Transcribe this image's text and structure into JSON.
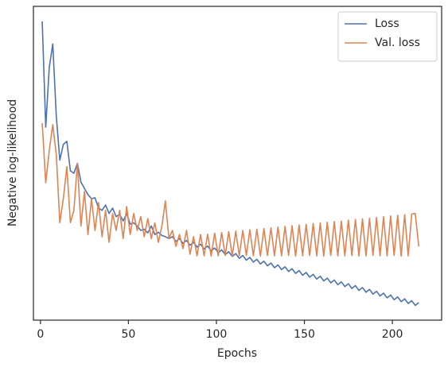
{
  "chart_data": {
    "type": "line",
    "xlabel": "Epochs",
    "ylabel": "Negative log-likelihood",
    "x": [
      1,
      3,
      5,
      7,
      9,
      11,
      13,
      15,
      17,
      19,
      21,
      23,
      25,
      27,
      29,
      31,
      33,
      35,
      37,
      39,
      41,
      43,
      45,
      47,
      49,
      51,
      53,
      55,
      57,
      59,
      61,
      63,
      65,
      67,
      69,
      71,
      73,
      75,
      77,
      79,
      81,
      83,
      85,
      87,
      89,
      91,
      93,
      95,
      97,
      99,
      101,
      103,
      105,
      107,
      109,
      111,
      113,
      115,
      117,
      119,
      121,
      123,
      125,
      127,
      129,
      131,
      133,
      135,
      137,
      139,
      141,
      143,
      145,
      147,
      149,
      151,
      153,
      155,
      157,
      159,
      161,
      163,
      165,
      167,
      169,
      171,
      173,
      175,
      177,
      179,
      181,
      183,
      185,
      187,
      189,
      191,
      193,
      195,
      197,
      199,
      201,
      203,
      205,
      207,
      209,
      211,
      213,
      215
    ],
    "series": [
      {
        "name": "Loss",
        "color": "#4c72b0",
        "values": [
          95.2,
          61.5,
          80.5,
          88,
          65,
          51,
          56,
          57,
          47.6,
          46.8,
          50,
          44,
          42,
          40,
          38.7,
          39,
          35.7,
          35,
          36.7,
          34,
          35.7,
          33,
          33.7,
          31.6,
          34,
          30.6,
          31,
          30,
          28.6,
          29,
          27.8,
          30,
          27.3,
          28,
          27,
          26.6,
          26,
          26.6,
          25.1,
          26.0,
          24.5,
          25.4,
          23.9,
          24.8,
          23.3,
          24.2,
          22.7,
          23.6,
          22.1,
          23.0,
          21.5,
          22.4,
          20.9,
          21.8,
          20.3,
          21.2,
          19.7,
          20.6,
          19.1,
          20.0,
          18.5,
          19.4,
          17.9,
          18.8,
          17.3,
          18.2,
          16.7,
          17.6,
          16.1,
          17.0,
          15.5,
          16.4,
          14.9,
          15.8,
          14.3,
          15.2,
          13.7,
          14.6,
          13.1,
          14.0,
          12.5,
          13.4,
          11.9,
          12.8,
          11.3,
          12.2,
          10.7,
          11.6,
          10.1,
          11.0,
          9.5,
          10.4,
          8.9,
          9.8,
          8.3,
          9.2,
          7.7,
          8.6,
          7.1,
          8.0,
          6.5,
          7.4,
          5.9,
          6.8,
          5.3,
          6.2,
          4.7,
          5.6
        ]
      },
      {
        "name": "Val. loss",
        "color": "#dd8452",
        "values": [
          62.8,
          43.8,
          54,
          62.3,
          52.7,
          31.1,
          38.7,
          48.9,
          31.1,
          35,
          50,
          30,
          41,
          27.3,
          38.7,
          28.6,
          37.5,
          26.6,
          35,
          24.8,
          34,
          28.6,
          35,
          26,
          36.2,
          27.3,
          34,
          28.6,
          33,
          26.6,
          32.4,
          26,
          31,
          24.8,
          29.9,
          38,
          26,
          28.6,
          23.5,
          27.3,
          22.8,
          28.6,
          21,
          26.6,
          20.5,
          27.3,
          20.5,
          27.4,
          20.4,
          27.7,
          20.5,
          27.9,
          20.6,
          28.2,
          20.4,
          28.4,
          20.5,
          28.6,
          20.6,
          28.8,
          20.5,
          29.0,
          20.4,
          29.2,
          20.6,
          29.4,
          20.5,
          29.7,
          20.5,
          29.9,
          20.6,
          30.1,
          20.4,
          30.3,
          20.5,
          30.5,
          20.6,
          30.8,
          20.5,
          31.0,
          20.4,
          31.2,
          20.6,
          31.4,
          20.5,
          31.6,
          20.5,
          31.9,
          20.6,
          32.1,
          20.4,
          32.3,
          20.5,
          32.5,
          20.6,
          32.7,
          20.5,
          33.0,
          20.5,
          33.2,
          20.6,
          33.4,
          20.4,
          33.6,
          20.5,
          33.8,
          34.0,
          23.5
        ]
      }
    ],
    "xlim": [
      -4,
      228
    ],
    "xticks": [
      0,
      50,
      100,
      150,
      200
    ],
    "ylim": [
      0,
      100
    ],
    "grid": false,
    "legend": "upper right"
  }
}
